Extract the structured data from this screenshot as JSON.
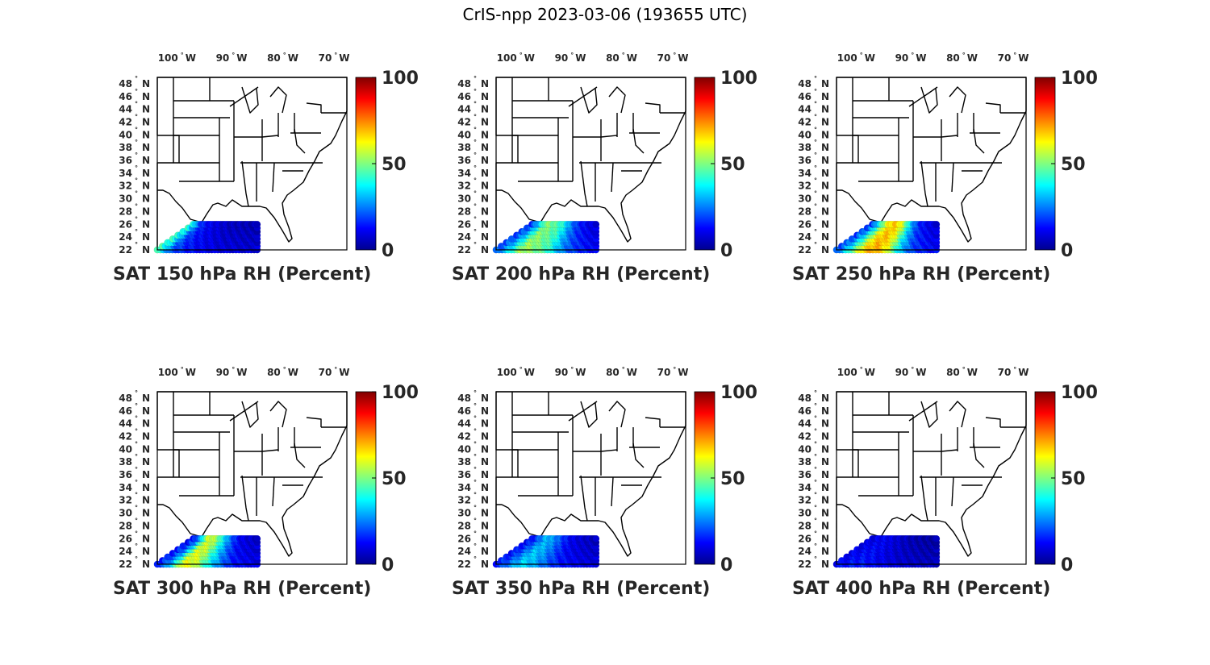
{
  "figure": {
    "title": "CrIS-npp 2023-03-06 (193655 UTC)"
  },
  "axes": {
    "lon_ticks": [
      {
        "value": -100,
        "label": "100",
        "hemi": "W"
      },
      {
        "value": -90,
        "label": "90",
        "hemi": "W"
      },
      {
        "value": -80,
        "label": "80",
        "hemi": "W"
      },
      {
        "value": -70,
        "label": "70",
        "hemi": "W"
      }
    ],
    "lat_ticks": [
      {
        "value": 48,
        "label": "48",
        "hemi": "N"
      },
      {
        "value": 46,
        "label": "46",
        "hemi": "N"
      },
      {
        "value": 44,
        "label": "44",
        "hemi": "N"
      },
      {
        "value": 42,
        "label": "42",
        "hemi": "N"
      },
      {
        "value": 40,
        "label": "40",
        "hemi": "N"
      },
      {
        "value": 38,
        "label": "38",
        "hemi": "N"
      },
      {
        "value": 36,
        "label": "36",
        "hemi": "N"
      },
      {
        "value": 34,
        "label": "34",
        "hemi": "N"
      },
      {
        "value": 32,
        "label": "32",
        "hemi": "N"
      },
      {
        "value": 30,
        "label": "30",
        "hemi": "N"
      },
      {
        "value": 28,
        "label": "28",
        "hemi": "N"
      },
      {
        "value": 26,
        "label": "26",
        "hemi": "N"
      },
      {
        "value": 24,
        "label": "24",
        "hemi": "N"
      },
      {
        "value": 22,
        "label": "22",
        "hemi": "N"
      }
    ],
    "degree_symbol": "°"
  },
  "colorbar": {
    "colormap": "jet",
    "range": [
      0,
      100
    ],
    "ticks": [
      {
        "value": 100,
        "label": "100"
      },
      {
        "value": 50,
        "label": "50"
      },
      {
        "value": 0,
        "label": "0"
      }
    ],
    "colors": [
      "#00008f",
      "#0000ff",
      "#0080ff",
      "#00ffff",
      "#80ff80",
      "#ffff00",
      "#ff8000",
      "#ff0000",
      "#800000"
    ]
  },
  "chart_data": [
    {
      "type": "scatter",
      "title": "SAT 150 hPa RH (Percent)",
      "variable": "RH",
      "level_hpa": 150,
      "units": "Percent",
      "xlim": [
        -105,
        -68
      ],
      "ylim": [
        22,
        49
      ],
      "swath": {
        "lon_range": [
          -105,
          -85.5
        ],
        "lat_range": [
          22,
          26
        ],
        "rh_by_lon": [
          45,
          22,
          16,
          13,
          11,
          9,
          9,
          8,
          8
        ]
      }
    },
    {
      "type": "scatter",
      "title": "SAT 200 hPa RH (Percent)",
      "variable": "RH",
      "level_hpa": 200,
      "units": "Percent",
      "xlim": [
        -105,
        -68
      ],
      "ylim": [
        22,
        49
      ],
      "swath": {
        "lon_range": [
          -105,
          -85.5
        ],
        "lat_range": [
          22,
          26
        ],
        "rh_by_lon": [
          20,
          35,
          55,
          50,
          45,
          30,
          20,
          15,
          12
        ]
      }
    },
    {
      "type": "scatter",
      "title": "SAT 250 hPa RH (Percent)",
      "variable": "RH",
      "level_hpa": 250,
      "units": "Percent",
      "xlim": [
        -105,
        -68
      ],
      "ylim": [
        22,
        49
      ],
      "swath": {
        "lon_range": [
          -105,
          -85.5
        ],
        "lat_range": [
          22,
          26
        ],
        "rh_by_lon": [
          20,
          40,
          65,
          72,
          62,
          35,
          20,
          15,
          12
        ]
      }
    },
    {
      "type": "scatter",
      "title": "SAT 300 hPa RH (Percent)",
      "variable": "RH",
      "level_hpa": 300,
      "units": "Percent",
      "xlim": [
        -105,
        -68
      ],
      "ylim": [
        22,
        49
      ],
      "swath": {
        "lon_range": [
          -105,
          -85.5
        ],
        "lat_range": [
          22,
          26
        ],
        "rh_by_lon": [
          15,
          30,
          62,
          58,
          40,
          25,
          15,
          12,
          10
        ]
      }
    },
    {
      "type": "scatter",
      "title": "SAT 350 hPa RH (Percent)",
      "variable": "RH",
      "level_hpa": 350,
      "units": "Percent",
      "xlim": [
        -105,
        -68
      ],
      "ylim": [
        22,
        49
      ],
      "swath": {
        "lon_range": [
          -105,
          -85.5
        ],
        "lat_range": [
          22,
          26
        ],
        "rh_by_lon": [
          15,
          25,
          35,
          30,
          22,
          15,
          12,
          10,
          9
        ]
      }
    },
    {
      "type": "scatter",
      "title": "SAT 400 hPa RH (Percent)",
      "variable": "RH",
      "level_hpa": 400,
      "units": "Percent",
      "xlim": [
        -105,
        -68
      ],
      "ylim": [
        22,
        49
      ],
      "swath": {
        "lon_range": [
          -105,
          -85.5
        ],
        "lat_range": [
          22,
          26
        ],
        "rh_by_lon": [
          12,
          15,
          15,
          12,
          10,
          8,
          7,
          6,
          6
        ]
      }
    }
  ]
}
